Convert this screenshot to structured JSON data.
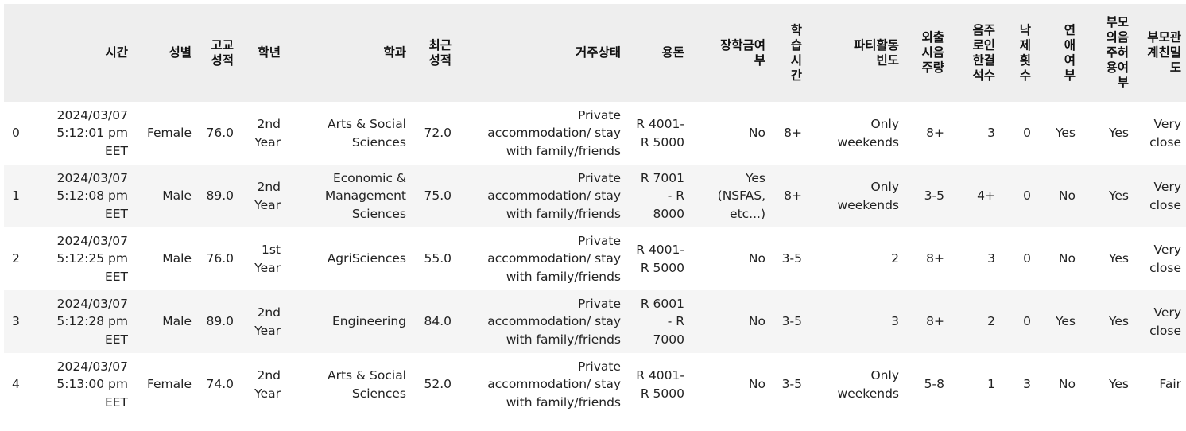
{
  "table": {
    "columns": [
      "",
      "시간",
      "성별",
      "고교\n성적",
      "학년",
      "학과",
      "최근\n성적",
      "거주상태",
      "용돈",
      "장학금여\n부",
      "학\n습\n시\n간",
      "파티활동\n빈도",
      "외출\n시음\n주량",
      "음주\n로인\n한결\n석수",
      "낙\n제\n횟\n수",
      "연\n애\n여\n부",
      "부모\n의음\n주허\n용여\n부",
      "부모관\n계친밀\n도"
    ],
    "rows": [
      [
        "0",
        "2024/03/07\n5:12:01 pm\nEET",
        "Female",
        "76.0",
        "2nd\nYear",
        "Arts & Social\nSciences",
        "72.0",
        "Private\naccommodation/ stay\nwith family/friends",
        "R 4001-\nR 5000",
        "No",
        "8+",
        "Only\nweekends",
        "8+",
        "3",
        "0",
        "Yes",
        "Yes",
        "Very\nclose"
      ],
      [
        "1",
        "2024/03/07\n5:12:08 pm\nEET",
        "Male",
        "89.0",
        "2nd\nYear",
        "Economic &\nManagement\nSciences",
        "75.0",
        "Private\naccommodation/ stay\nwith family/friends",
        "R 7001\n- R\n8000",
        "Yes\n(NSFAS,\netc...)",
        "8+",
        "Only\nweekends",
        "3-5",
        "4+",
        "0",
        "No",
        "Yes",
        "Very\nclose"
      ],
      [
        "2",
        "2024/03/07\n5:12:25 pm\nEET",
        "Male",
        "76.0",
        "1st\nYear",
        "AgriSciences",
        "55.0",
        "Private\naccommodation/ stay\nwith family/friends",
        "R 4001-\nR 5000",
        "No",
        "3-5",
        "2",
        "8+",
        "3",
        "0",
        "No",
        "Yes",
        "Very\nclose"
      ],
      [
        "3",
        "2024/03/07\n5:12:28 pm\nEET",
        "Male",
        "89.0",
        "2nd\nYear",
        "Engineering",
        "84.0",
        "Private\naccommodation/ stay\nwith family/friends",
        "R 6001\n- R\n7000",
        "No",
        "3-5",
        "3",
        "8+",
        "2",
        "0",
        "Yes",
        "Yes",
        "Very\nclose"
      ],
      [
        "4",
        "2024/03/07\n5:13:00 pm\nEET",
        "Female",
        "74.0",
        "2nd\nYear",
        "Arts & Social\nSciences",
        "52.0",
        "Private\naccommodation/ stay\nwith family/friends",
        "R 4001-\nR 5000",
        "No",
        "3-5",
        "Only\nweekends",
        "5-8",
        "1",
        "3",
        "No",
        "Yes",
        "Fair"
      ]
    ]
  }
}
